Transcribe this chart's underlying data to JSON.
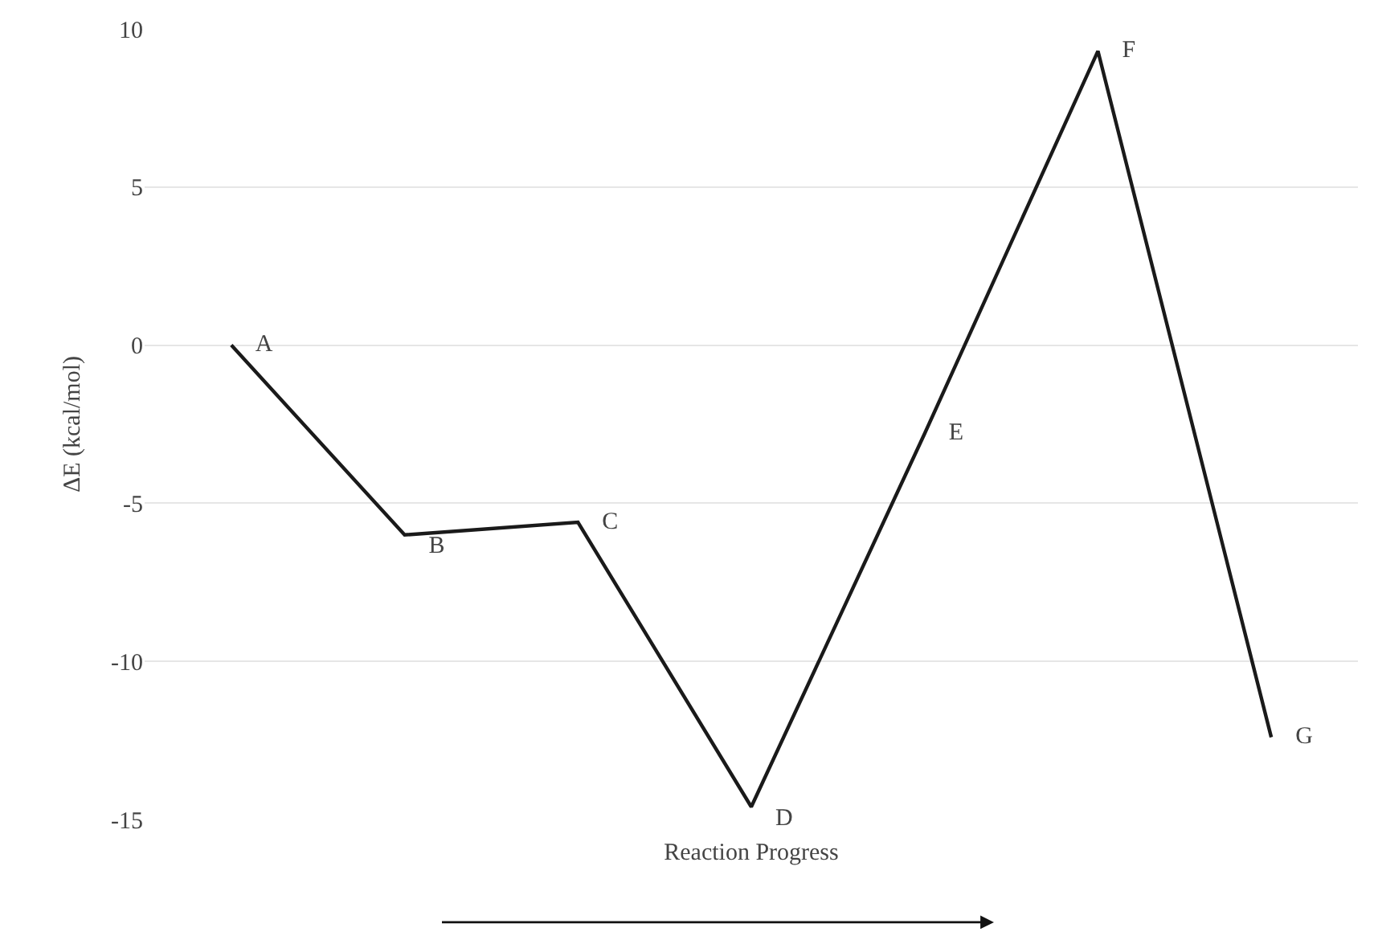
{
  "chart_data": {
    "type": "line",
    "ylabel": "ΔE (kcal/mol)",
    "xlabel": "Reaction Progress",
    "categories": [
      "A",
      "B",
      "C",
      "D",
      "E",
      "F",
      "G"
    ],
    "series": [
      {
        "color": "#1a1a1a",
        "values": [
          0,
          -6.0,
          -5.6,
          -14.6,
          -2.8,
          9.3,
          -12.4
        ]
      }
    ],
    "ylim": [
      -15,
      10
    ],
    "yticks": [
      -15,
      -10,
      -5,
      0,
      5,
      10
    ],
    "grid": "y",
    "tick_labels": "y",
    "legend": false
  }
}
